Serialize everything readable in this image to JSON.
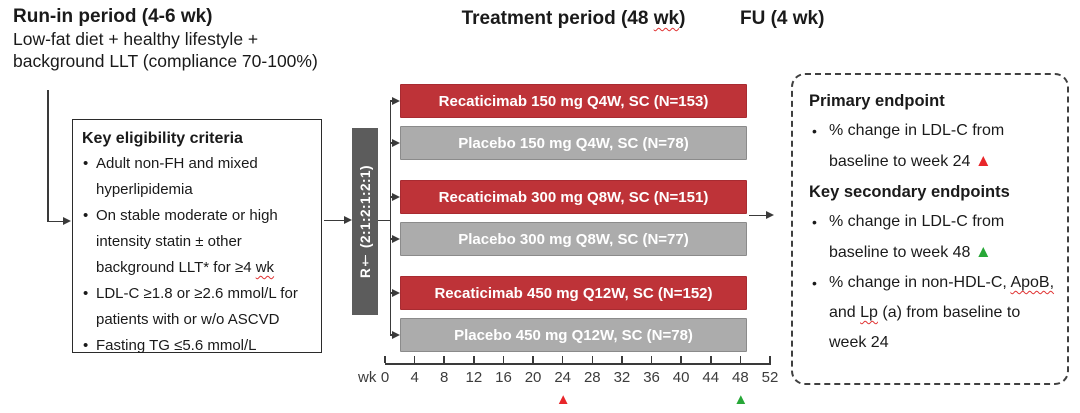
{
  "headers": {
    "run_in": {
      "title": "Run-in period (4-6 wk)",
      "subtitle_lines": [
        "Low-fat diet + healthy lifestyle +",
        "background LLT (compliance 70-100%)"
      ]
    },
    "treatment": {
      "segments": [
        {
          "text": "Treatment period (48 "
        },
        {
          "text": "wk",
          "style": "squiggle"
        },
        {
          "text": ")"
        }
      ]
    },
    "followup": {
      "title": "FU (4 wk)"
    }
  },
  "eligibility": {
    "title": "Key eligibility criteria",
    "bullets": [
      {
        "segments": [
          {
            "text": "Adult non-FH and mixed hyperlipidemia"
          }
        ]
      },
      {
        "segments": [
          {
            "text": "On stable moderate or high intensity statin ± other background LLT* for ≥4 "
          },
          {
            "text": "wk",
            "style": "squiggle"
          }
        ]
      },
      {
        "segments": [
          {
            "text": "LDL-C ≥1.8 or ≥2.6 mmol/L for patients with or w/o ASCVD"
          }
        ]
      },
      {
        "segments": [
          {
            "text": "Fasting TG ≤5.6 mmol/L"
          }
        ]
      }
    ]
  },
  "randomization": {
    "label": "R† (2:1:2:1:2:1)"
  },
  "arms": [
    {
      "label": "Recaticimab 150 mg Q4W, SC (N=153)",
      "type": "active"
    },
    {
      "label": "Placebo 150 mg Q4W, SC (N=78)",
      "type": "placebo"
    },
    {
      "label": "Recaticimab 300 mg Q8W, SC (N=151)",
      "type": "active"
    },
    {
      "label": "Placebo 300 mg Q8W, SC (N=77)",
      "type": "placebo"
    },
    {
      "label": "Recaticimab 450 mg Q12W, SC (N=152)",
      "type": "active"
    },
    {
      "label": "Placebo 450 mg Q12W, SC (N=78)",
      "type": "placebo"
    }
  ],
  "axis": {
    "unit_label": "wk",
    "tick_values": [
      0,
      4,
      8,
      12,
      16,
      20,
      24,
      28,
      32,
      36,
      40,
      44,
      48,
      52
    ],
    "max_week": 52,
    "markers": [
      {
        "week": 24,
        "glyph": "▲",
        "color": "#e8262a"
      },
      {
        "week": 48,
        "glyph": "▲",
        "color": "#27a737"
      }
    ]
  },
  "endpoints": {
    "sections": [
      {
        "title": "Primary endpoint",
        "bullets": [
          {
            "segments": [
              {
                "text": "% change in LDL-C from baseline to week 24 "
              },
              {
                "text": "▲",
                "style": "red-triangle"
              }
            ]
          }
        ]
      },
      {
        "title": "Key secondary endpoints",
        "bullets": [
          {
            "segments": [
              {
                "text": "% change in LDL-C from baseline to week 48 "
              },
              {
                "text": "▲",
                "style": "green-triangle"
              }
            ]
          },
          {
            "segments": [
              {
                "text": "% change in non-HDL-C, "
              },
              {
                "text": "ApoB,",
                "style": "squiggle"
              },
              {
                "text": " and "
              },
              {
                "text": "Lp",
                "style": "squiggle"
              },
              {
                "text": " (a) from baseline to week 24"
              }
            ]
          }
        ]
      }
    ]
  },
  "colors": {
    "active_fill": "#be3338",
    "active_border": "#a82b31",
    "placebo_fill": "#acacac",
    "placebo_border": "#8b8b8b",
    "randomization_fill": "#5c5c5c",
    "marker_red": "#e8262a",
    "marker_green": "#27a737"
  }
}
